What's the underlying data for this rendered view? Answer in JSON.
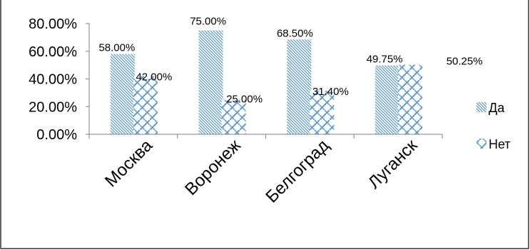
{
  "chart_data": {
    "type": "bar",
    "categories": [
      "Москва",
      "Воронеж",
      "Белгоград",
      "Луганск"
    ],
    "series": [
      {
        "name": "Да",
        "values": [
          58.0,
          75.0,
          68.5,
          49.75
        ],
        "data_labels": [
          "58.00%",
          "75.00%",
          "68.50%",
          "49.75%"
        ]
      },
      {
        "name": "Нет",
        "values": [
          42.0,
          25.0,
          31.4,
          50.25
        ],
        "data_labels": [
          "42.00%",
          "25.00%",
          "31.40%",
          "50.25%"
        ]
      }
    ],
    "yticks": [
      "0.00%",
      "20.00%",
      "40.00%",
      "60.00%",
      "80.00%"
    ],
    "ylim": [
      0,
      80
    ],
    "legend_position": "right",
    "colors": {
      "bar_fill": "#5b9bd5",
      "background": "#ffffff",
      "border": "#000000"
    }
  }
}
